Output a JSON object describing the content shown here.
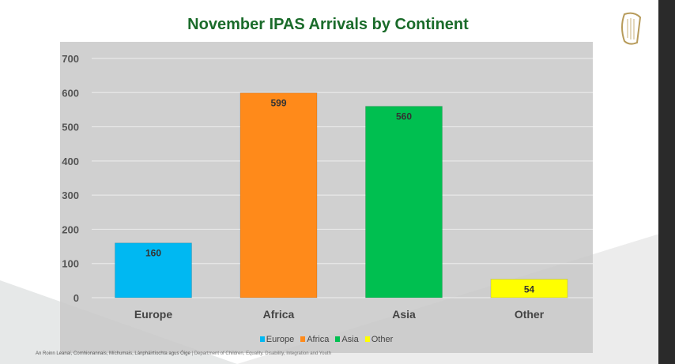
{
  "chart_data": {
    "type": "bar",
    "title": "November IPAS Arrivals by Continent",
    "categories": [
      "Europe",
      "Africa",
      "Asia",
      "Other"
    ],
    "values": [
      160,
      599,
      560,
      54
    ],
    "colors": [
      "#00b8f2",
      "#ff8a1a",
      "#00bf50",
      "#ffff00"
    ],
    "ylim": [
      0,
      700
    ],
    "yticks": [
      0,
      100,
      200,
      300,
      400,
      500,
      600,
      700
    ],
    "grid": true,
    "legend_position": "bottom",
    "xlabel": "",
    "ylabel": ""
  },
  "footer": {
    "irish": "An Roinn Leanaí, Comhionannais, Míchumais, Lánpháirtíochta agus Óige",
    "separator": " | ",
    "english": "Department of Children, Equality, Disability, Integration and Youth"
  },
  "logo": {
    "name": "harp-logo"
  }
}
